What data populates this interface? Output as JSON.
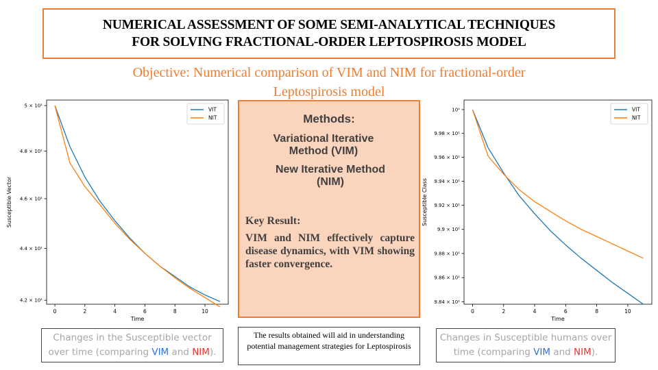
{
  "title": {
    "line1": "NUMERICAL ASSESSMENT OF SOME SEMI-ANALYTICAL TECHNIQUES",
    "line2": "FOR SOLVING FRACTIONAL-ORDER LEPTOSPIROSIS MODEL"
  },
  "objective": {
    "line1": "Objective: Numerical comparison of VIM and NIM for fractional-order",
    "line2": "Leptospirosis model"
  },
  "methods": {
    "heading": "Methods:",
    "item1_line1": "Variational Iterative",
    "item1_line2": "Method (VIM)",
    "item2_line1": "New Iterative Method",
    "item2_line2": "(NIM)"
  },
  "key_result": {
    "heading": "Key Result:",
    "text": "VIM and NIM effectively capture disease dynamics, with VIM showing faster convergence."
  },
  "captions": {
    "left": {
      "line1": "Changes in the Susceptible vector",
      "line2_prefix": "over time (comparing ",
      "vim": "VIM",
      "and": " and ",
      "nim": "NIM",
      "suffix": ")."
    },
    "right": {
      "line1": "Changes in Susceptible humans over",
      "line2_prefix": "time (comparing ",
      "vim": "VIM",
      "and": " and ",
      "nim": "NIM",
      "suffix": ")."
    }
  },
  "result_note": "The results obtained will aid in understanding potential management strategies for Leptospirosis",
  "colors": {
    "accent": "#ed7d31",
    "box_fill": "#fbd4bd",
    "vit_line": "#1f77b4",
    "nit_line": "#ff7f0e",
    "vim_text": "#2e6fd6",
    "nim_text": "#e8322e"
  },
  "chart_data": [
    {
      "type": "line",
      "xlabel": "Time",
      "ylabel": "Susceptible Vector",
      "xlim": [
        -0.55,
        11.55
      ],
      "ylim": [
        41.85,
        50.25
      ],
      "log_y": true,
      "xticks": [
        0,
        2,
        4,
        6,
        8,
        10
      ],
      "yticks": [
        {
          "value": 50,
          "label": "5 × 10¹"
        },
        {
          "value": 48,
          "label": "4.8 × 10¹"
        },
        {
          "value": 46,
          "label": "4.6 × 10¹"
        },
        {
          "value": 44,
          "label": "4.4 × 10¹"
        },
        {
          "value": 42,
          "label": "4.2 × 10¹"
        }
      ],
      "legend": "top-right",
      "x": [
        0,
        1,
        2,
        3,
        4,
        5,
        6,
        7,
        8,
        9,
        10,
        11
      ],
      "series": [
        {
          "name": "VIT",
          "color": "#1f77b4",
          "values": [
            50.0,
            48.2,
            46.9,
            45.9,
            45.1,
            44.4,
            43.8,
            43.3,
            42.9,
            42.5,
            42.2,
            41.95
          ]
        },
        {
          "name": "NIT",
          "color": "#ff7f0e",
          "values": [
            50.0,
            47.5,
            46.5,
            45.75,
            45.0,
            44.35,
            43.8,
            43.3,
            42.85,
            42.45,
            42.1,
            41.75
          ]
        }
      ]
    },
    {
      "type": "line",
      "xlabel": "Time",
      "ylabel": "Susceptible Class",
      "xlim": [
        -0.55,
        11.55
      ],
      "ylim": [
        98.38,
        100.08
      ],
      "log_y": true,
      "xticks": [
        0,
        2,
        4,
        6,
        8,
        10
      ],
      "yticks": [
        {
          "value": 100,
          "label": "10²"
        },
        {
          "value": 99.8,
          "label": "9.98 × 10¹"
        },
        {
          "value": 99.6,
          "label": "9.96 × 10¹"
        },
        {
          "value": 99.4,
          "label": "9.94 × 10¹"
        },
        {
          "value": 99.2,
          "label": "9.92 × 10¹"
        },
        {
          "value": 99.0,
          "label": "9.9 × 10¹"
        },
        {
          "value": 98.8,
          "label": "9.88 × 10¹"
        },
        {
          "value": 98.6,
          "label": "9.86 × 10¹"
        },
        {
          "value": 98.4,
          "label": "9.84 × 10¹"
        }
      ],
      "legend": "top-right",
      "x": [
        0,
        1,
        2,
        3,
        4,
        5,
        6,
        7,
        8,
        9,
        10,
        11
      ],
      "series": [
        {
          "name": "VIT",
          "color": "#1f77b4",
          "values": [
            100.0,
            99.68,
            99.47,
            99.28,
            99.13,
            98.99,
            98.87,
            98.76,
            98.66,
            98.56,
            98.47,
            98.38
          ]
        },
        {
          "name": "NIT",
          "color": "#ff7f0e",
          "values": [
            100.0,
            99.61,
            99.46,
            99.33,
            99.23,
            99.15,
            99.07,
            99.0,
            98.94,
            98.88,
            98.82,
            98.76
          ]
        }
      ]
    }
  ]
}
